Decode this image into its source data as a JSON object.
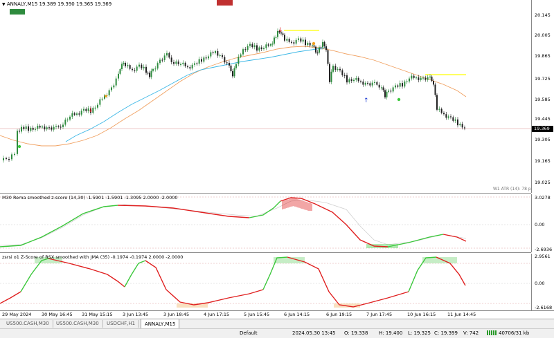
{
  "chart": {
    "symbol_info": "ANNALY,M15  19.389 19.390 19.365 19.369",
    "badge_left": "",
    "badge_top": "",
    "atr_note": "W1 ATR (14): 78 pips",
    "price_ticks": [
      "20.145",
      "20.005",
      "19.865",
      "19.725",
      "19.585",
      "19.445",
      "19.305",
      "19.165",
      "19.025"
    ],
    "current_price": "19.369"
  },
  "indicator1": {
    "title": "M30 Rema smoothed z-score (14,30) -1.5901 -1.5901 -1.3095 2.0000 -2.0000",
    "ticks": [
      "3.0278",
      "0.00",
      "-2.6936"
    ]
  },
  "indicator2": {
    "title": "zsrsi o1 Z-Score of RSX smoothed with JMA (35) -0.1974 -0.1974 2.0000 -2.0000",
    "ticks": [
      "2.9561",
      "0.00",
      "-2.6168"
    ]
  },
  "time_axis": [
    "29 May 2024",
    "30 May 16:45",
    "31 May 15:15",
    "3 Jun 13:45",
    "3 Jun 18:45",
    "4 Jun 17:15",
    "5 Jun 15:45",
    "6 Jun 14:15",
    "6 Jun 19:15",
    "7 Jun 17:45",
    "10 Jun 16:15",
    "11 Jun 14:45"
  ],
  "tabs": [
    {
      "label": "US500.CASH,M30",
      "active": false
    },
    {
      "label": "US500.CASH,M30",
      "active": false
    },
    {
      "label": "USDCHF,H1",
      "active": false
    },
    {
      "label": "ANNALY,M15",
      "active": true
    }
  ],
  "status": {
    "profile": "Default",
    "datetime": "2024.05.30 13:45",
    "open": "O: 19.338",
    "high": "H: 19.400",
    "low": "L: 19.325",
    "close": "C: 19.399",
    "volume": "V: 742",
    "traffic": "40706/31 kb"
  },
  "colors": {
    "bull": "#2e8b3e",
    "bear": "#222222",
    "ma_fast": "#3bb7e6",
    "ma_slow": "#f0a060",
    "level": "#ffff00",
    "zscore_up": "#3cc83c",
    "zscore_down": "#e02020"
  }
}
